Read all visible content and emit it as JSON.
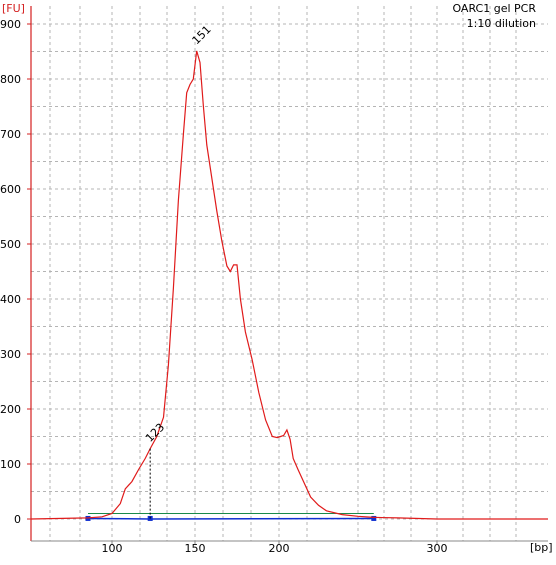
{
  "chart_data": {
    "type": "line",
    "title": "OARC1 gel PCR",
    "subtitle": "1:10 dilution",
    "ylabel": "[FU]",
    "xlabel": "[bp]",
    "ylim": [
      0,
      900
    ],
    "x_ticks": [
      "100",
      "150",
      "200",
      "300"
    ],
    "y_ticks": [
      0,
      100,
      200,
      300,
      400,
      500,
      600,
      700,
      800,
      900
    ],
    "grid": true,
    "colors": {
      "trace": "#e01b1b",
      "axis": "#d42020",
      "grid": "#b4b4b4",
      "baseline": "#1030d0",
      "baseline_top": "#1a8a4a"
    },
    "peaks": [
      {
        "label": "151",
        "x": 151,
        "y": 851
      },
      {
        "label": "123",
        "x": 123,
        "y": 128
      }
    ],
    "series": [
      {
        "values": [
          {
            "x": 88,
            "y": 2
          },
          {
            "x": 95,
            "y": 4
          },
          {
            "x": 100,
            "y": 10
          },
          {
            "x": 105,
            "y": 28
          },
          {
            "x": 108,
            "y": 55
          },
          {
            "x": 112,
            "y": 68
          },
          {
            "x": 116,
            "y": 90
          },
          {
            "x": 120,
            "y": 110
          },
          {
            "x": 123,
            "y": 128
          },
          {
            "x": 127,
            "y": 150
          },
          {
            "x": 131,
            "y": 185
          },
          {
            "x": 134,
            "y": 280
          },
          {
            "x": 137,
            "y": 420
          },
          {
            "x": 140,
            "y": 580
          },
          {
            "x": 143,
            "y": 700
          },
          {
            "x": 145,
            "y": 775
          },
          {
            "x": 147,
            "y": 790
          },
          {
            "x": 149,
            "y": 800
          },
          {
            "x": 151,
            "y": 851
          },
          {
            "x": 153,
            "y": 830
          },
          {
            "x": 155,
            "y": 750
          },
          {
            "x": 157,
            "y": 680
          },
          {
            "x": 160,
            "y": 620
          },
          {
            "x": 163,
            "y": 560
          },
          {
            "x": 166,
            "y": 505
          },
          {
            "x": 169,
            "y": 460
          },
          {
            "x": 171,
            "y": 450
          },
          {
            "x": 173,
            "y": 462
          },
          {
            "x": 175,
            "y": 462
          },
          {
            "x": 177,
            "y": 400
          },
          {
            "x": 180,
            "y": 340
          },
          {
            "x": 184,
            "y": 290
          },
          {
            "x": 188,
            "y": 230
          },
          {
            "x": 192,
            "y": 180
          },
          {
            "x": 196,
            "y": 150
          },
          {
            "x": 199,
            "y": 148
          },
          {
            "x": 201,
            "y": 150
          },
          {
            "x": 203,
            "y": 152
          },
          {
            "x": 205,
            "y": 162
          },
          {
            "x": 207,
            "y": 145
          },
          {
            "x": 209,
            "y": 110
          },
          {
            "x": 212,
            "y": 90
          },
          {
            "x": 216,
            "y": 65
          },
          {
            "x": 220,
            "y": 40
          },
          {
            "x": 225,
            "y": 25
          },
          {
            "x": 230,
            "y": 15
          },
          {
            "x": 240,
            "y": 8
          },
          {
            "x": 250,
            "y": 5
          },
          {
            "x": 260,
            "y": 3
          },
          {
            "x": 275,
            "y": 2
          },
          {
            "x": 300,
            "y": 0
          },
          {
            "x": 330,
            "y": 0
          }
        ]
      }
    ],
    "baseline_markers": [
      88,
      123,
      260
    ]
  }
}
